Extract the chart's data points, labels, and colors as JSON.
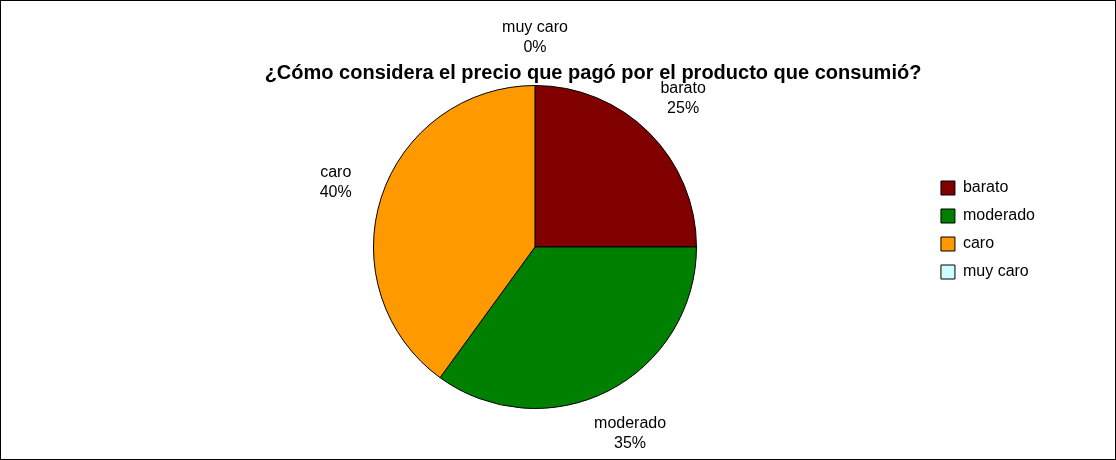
{
  "chart_data": {
    "type": "pie",
    "title": "¿Cómo considera el precio que pagó por el producto que consumió?",
    "categories": [
      "barato",
      "moderado",
      "caro",
      "muy caro"
    ],
    "values": [
      25,
      35,
      40,
      0
    ],
    "value_labels": [
      "25%",
      "35%",
      "40%",
      "0%"
    ],
    "colors": [
      "#800000",
      "#008000",
      "#ff9900",
      "#ccffff"
    ],
    "legend": "right"
  }
}
